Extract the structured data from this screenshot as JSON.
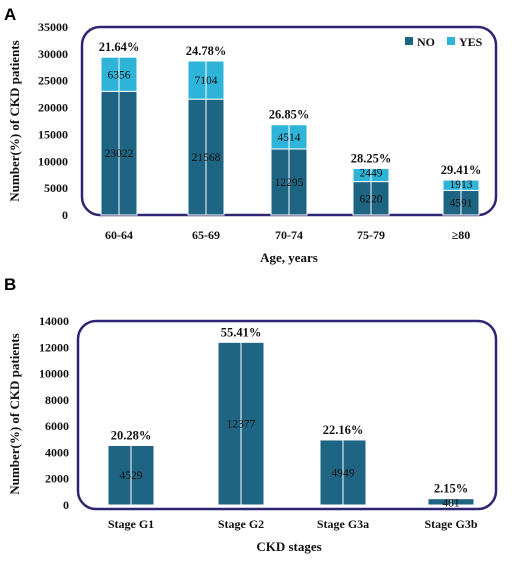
{
  "chart_data": [
    {
      "panel": "A",
      "type": "bar",
      "stacked": true,
      "xlabel": "Age, years",
      "ylabel": "Number(%) of CKD patients",
      "ylim": [
        0,
        35000
      ],
      "yticks": [
        0,
        5000,
        10000,
        15000,
        20000,
        25000,
        30000,
        35000
      ],
      "categories": [
        "60-64",
        "65-69",
        "70-74",
        "75-79",
        "≥80"
      ],
      "series": [
        {
          "name": "NO",
          "color": "#1e6583",
          "values": [
            23022,
            21568,
            12295,
            6220,
            4591
          ]
        },
        {
          "name": "YES",
          "color": "#2db4d8",
          "values": [
            6356,
            7104,
            4514,
            2449,
            1913
          ]
        }
      ],
      "percent_labels": [
        "21.64%",
        "24.78%",
        "26.85%",
        "28.25%",
        "29.41%"
      ],
      "legend_position": "top-right",
      "frame_color": "#2e2672"
    },
    {
      "panel": "B",
      "type": "bar",
      "stacked": false,
      "xlabel": "CKD stages",
      "ylabel": "Number(%) of CKD patients",
      "ylim": [
        0,
        14000
      ],
      "yticks": [
        0,
        2000,
        4000,
        6000,
        8000,
        10000,
        12000,
        14000
      ],
      "categories": [
        "Stage G1",
        "Stage G2",
        "Stage G3a",
        "Stage G3b"
      ],
      "series": [
        {
          "color": "#1e6583",
          "values": [
            4529,
            12377,
            4949,
            481
          ]
        }
      ],
      "percent_labels": [
        "20.28%",
        "55.41%",
        "22.16%",
        "2.15%"
      ],
      "frame_color": "#2e2672"
    }
  ]
}
